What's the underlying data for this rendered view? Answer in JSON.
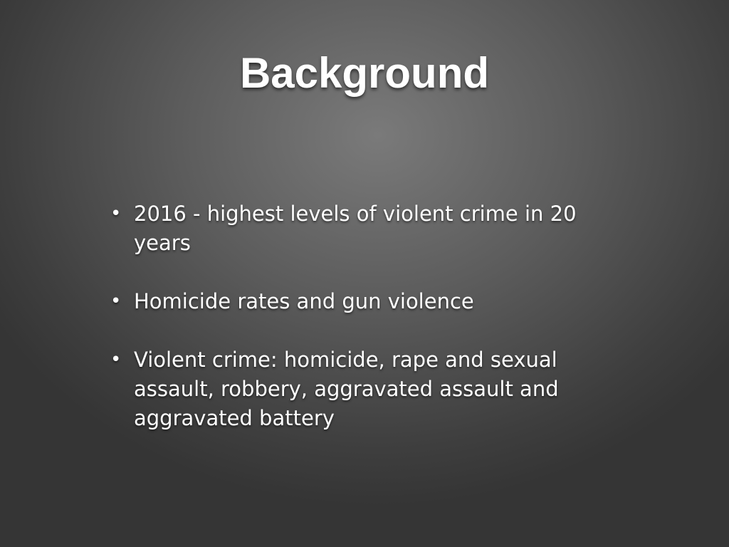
{
  "slide": {
    "title": "Background",
    "bullet_glyph": "•",
    "bullets": [
      "2016 - highest levels of violent crime in 20 years",
      "Homicide rates and gun violence",
      "Violent crime: homicide, rape and sexual assault, robbery, aggravated assault and aggravated battery"
    ]
  }
}
